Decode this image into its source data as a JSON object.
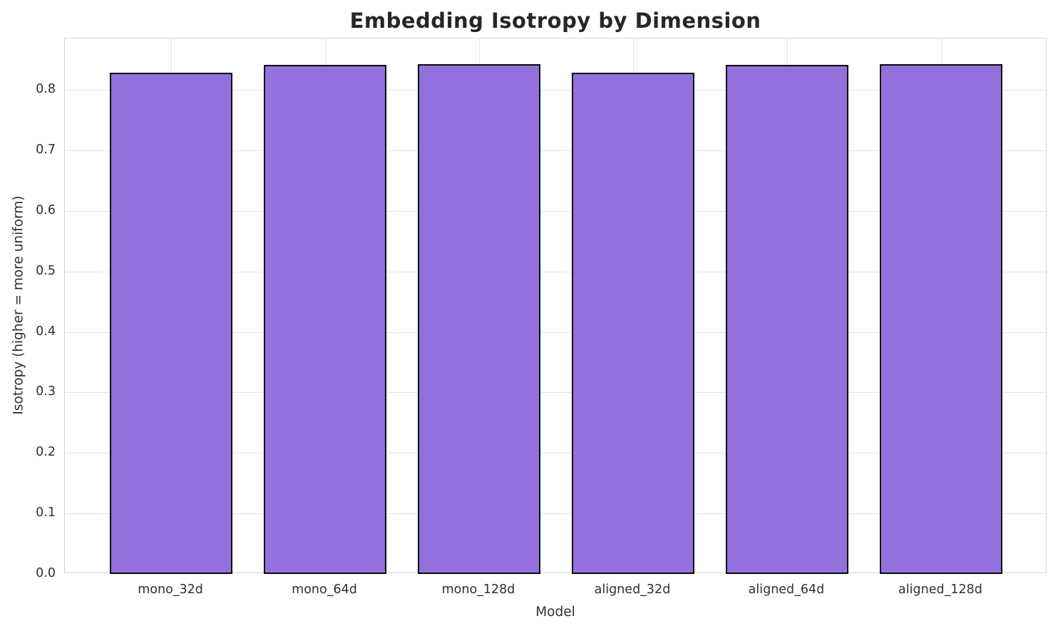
{
  "figure": {
    "background": "#ffffff"
  },
  "chart_data": {
    "type": "bar",
    "title": "Embedding Isotropy by Dimension",
    "xlabel": "Model",
    "ylabel": "Isotropy (higher = more uniform)",
    "categories": [
      "mono_32d",
      "mono_64d",
      "mono_128d",
      "aligned_32d",
      "aligned_64d",
      "aligned_128d"
    ],
    "values": [
      0.829,
      0.841,
      0.843,
      0.829,
      0.841,
      0.842
    ],
    "ylim": [
      0,
      0.885
    ],
    "yticks": [
      0.0,
      0.1,
      0.2,
      0.3,
      0.4,
      0.5,
      0.6,
      0.7,
      0.8
    ],
    "ytick_decimals": 1,
    "grid": true,
    "legend_position": "none",
    "bar_color": "#9370db",
    "bar_edge_color": "#0a0a0a",
    "grid_color": "#e5e5e5",
    "spine_color": "#d6d6d6",
    "text_color": "#303030",
    "title_color": "#262626",
    "bar_width_units": 0.8,
    "xlim": [
      -0.69,
      5.69
    ]
  }
}
